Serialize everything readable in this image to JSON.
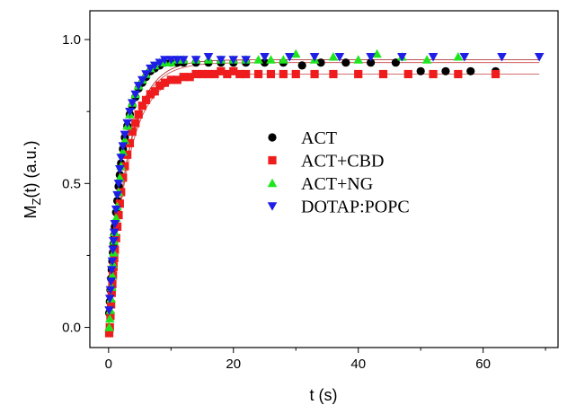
{
  "chart_data": {
    "type": "scatter",
    "xlabel": "t (s)",
    "ylabel_main": "M",
    "ylabel_sub": "Z",
    "ylabel_rest": "(t) (a.u.)",
    "xlim": [
      -3,
      72
    ],
    "ylim": [
      -0.07,
      1.1
    ],
    "xticks": [
      0,
      20,
      40,
      60
    ],
    "yticks": [
      0.0,
      0.5,
      1.0
    ],
    "ytick_labels": [
      "0.0",
      "0.5",
      "1.0"
    ],
    "grid": false,
    "legend_position": "center-right",
    "series": [
      {
        "name": "ACT",
        "marker": "circle",
        "color": "#000000",
        "plateau": 0.92,
        "x": [
          0.1,
          0.2,
          0.3,
          0.4,
          0.5,
          0.6,
          0.7,
          0.8,
          0.9,
          1.0,
          1.2,
          1.4,
          1.6,
          1.8,
          2.0,
          2.3,
          2.6,
          3.0,
          3.4,
          3.8,
          4.3,
          4.8,
          5.4,
          6.0,
          6.7,
          7.4,
          8.2,
          9.0,
          10.0,
          11.0,
          12.0,
          14.0,
          16.0,
          18.0,
          20.0,
          22.0,
          25.0,
          28.0,
          31.0,
          34.0,
          38.0,
          42.0,
          46.0,
          50.0,
          54.0,
          58.0,
          62.0
        ],
        "y": [
          0.05,
          0.09,
          0.13,
          0.17,
          0.2,
          0.23,
          0.26,
          0.29,
          0.32,
          0.35,
          0.4,
          0.44,
          0.49,
          0.53,
          0.57,
          0.62,
          0.66,
          0.7,
          0.74,
          0.77,
          0.8,
          0.83,
          0.85,
          0.87,
          0.89,
          0.9,
          0.91,
          0.92,
          0.92,
          0.92,
          0.92,
          0.92,
          0.92,
          0.92,
          0.92,
          0.92,
          0.92,
          0.92,
          0.91,
          0.92,
          0.92,
          0.92,
          0.92,
          0.89,
          0.89,
          0.89,
          0.89
        ]
      },
      {
        "name": "ACT+CBD",
        "marker": "square",
        "color": "#ee1c1c",
        "plateau": 0.88,
        "x": [
          0.1,
          0.2,
          0.3,
          0.4,
          0.5,
          0.6,
          0.7,
          0.8,
          0.9,
          1.0,
          1.2,
          1.4,
          1.6,
          1.8,
          2.0,
          2.3,
          2.6,
          3.0,
          3.4,
          3.8,
          4.3,
          4.8,
          5.4,
          6.0,
          6.7,
          7.4,
          8.2,
          9.0,
          10.0,
          11.0,
          12.0,
          13.0,
          14.0,
          15.0,
          16.0,
          17.0,
          18.0,
          19.0,
          20.0,
          21.0,
          22.0,
          24.0,
          26.0,
          28.0,
          30.0,
          33.0,
          36.0,
          40.0,
          44.0,
          48.0,
          52.0,
          56.0,
          62.0
        ],
        "y": [
          -0.02,
          0.0,
          0.04,
          0.08,
          0.12,
          0.15,
          0.18,
          0.21,
          0.24,
          0.27,
          0.31,
          0.35,
          0.39,
          0.43,
          0.47,
          0.52,
          0.56,
          0.6,
          0.64,
          0.68,
          0.71,
          0.74,
          0.77,
          0.79,
          0.81,
          0.82,
          0.84,
          0.85,
          0.86,
          0.86,
          0.87,
          0.87,
          0.88,
          0.88,
          0.88,
          0.88,
          0.89,
          0.88,
          0.89,
          0.88,
          0.88,
          0.88,
          0.88,
          0.88,
          0.88,
          0.88,
          0.88,
          0.88,
          0.88,
          0.88,
          0.88,
          0.88,
          0.88
        ]
      },
      {
        "name": "ACT+NG",
        "marker": "triangle-up",
        "color": "#1ee61e",
        "plateau": 0.93,
        "x": [
          0.1,
          0.2,
          0.3,
          0.4,
          0.5,
          0.6,
          0.7,
          0.8,
          0.9,
          1.0,
          1.2,
          1.4,
          1.6,
          1.8,
          2.0,
          2.3,
          2.6,
          3.0,
          3.4,
          3.8,
          4.3,
          4.8,
          5.4,
          6.0,
          6.7,
          7.4,
          8.2,
          9.0,
          10.0,
          11.0,
          12.0,
          14.0,
          16.0,
          18.0,
          20.0,
          22.0,
          24.0,
          26.0,
          28.0,
          30.0,
          33.0,
          36.0,
          40.0,
          43.0,
          47.0,
          51.0,
          56.0
        ],
        "y": [
          0.0,
          0.03,
          0.06,
          0.1,
          0.14,
          0.18,
          0.22,
          0.26,
          0.3,
          0.33,
          0.38,
          0.42,
          0.47,
          0.52,
          0.56,
          0.61,
          0.65,
          0.7,
          0.74,
          0.78,
          0.81,
          0.84,
          0.86,
          0.88,
          0.9,
          0.91,
          0.92,
          0.92,
          0.92,
          0.93,
          0.93,
          0.93,
          0.93,
          0.93,
          0.93,
          0.93,
          0.93,
          0.93,
          0.93,
          0.95,
          0.93,
          0.94,
          0.93,
          0.95,
          0.94,
          0.93,
          0.94
        ]
      },
      {
        "name": "DOTAP:POPC",
        "marker": "triangle-down",
        "color": "#1e1ee6",
        "plateau": 0.93,
        "x": [
          0.1,
          0.2,
          0.3,
          0.4,
          0.5,
          0.6,
          0.7,
          0.8,
          0.9,
          1.0,
          1.2,
          1.4,
          1.6,
          1.8,
          2.0,
          2.3,
          2.6,
          3.0,
          3.4,
          3.8,
          4.3,
          4.8,
          5.4,
          6.0,
          6.7,
          7.4,
          8.2,
          9.0,
          10.0,
          11.0,
          12.0,
          14.0,
          16.0,
          18.0,
          20.0,
          22.0,
          25.0,
          29.0,
          33.0,
          37.0,
          42.0,
          47.0,
          52.0,
          57.0,
          63.0,
          69.0
        ],
        "y": [
          0.06,
          0.1,
          0.13,
          0.16,
          0.2,
          0.23,
          0.27,
          0.3,
          0.33,
          0.36,
          0.41,
          0.46,
          0.5,
          0.55,
          0.59,
          0.63,
          0.67,
          0.71,
          0.75,
          0.78,
          0.81,
          0.84,
          0.86,
          0.88,
          0.9,
          0.91,
          0.92,
          0.93,
          0.93,
          0.93,
          0.93,
          0.93,
          0.94,
          0.93,
          0.93,
          0.93,
          0.94,
          0.94,
          0.94,
          0.94,
          0.94,
          0.94,
          0.94,
          0.94,
          0.94,
          0.94
        ]
      }
    ]
  }
}
